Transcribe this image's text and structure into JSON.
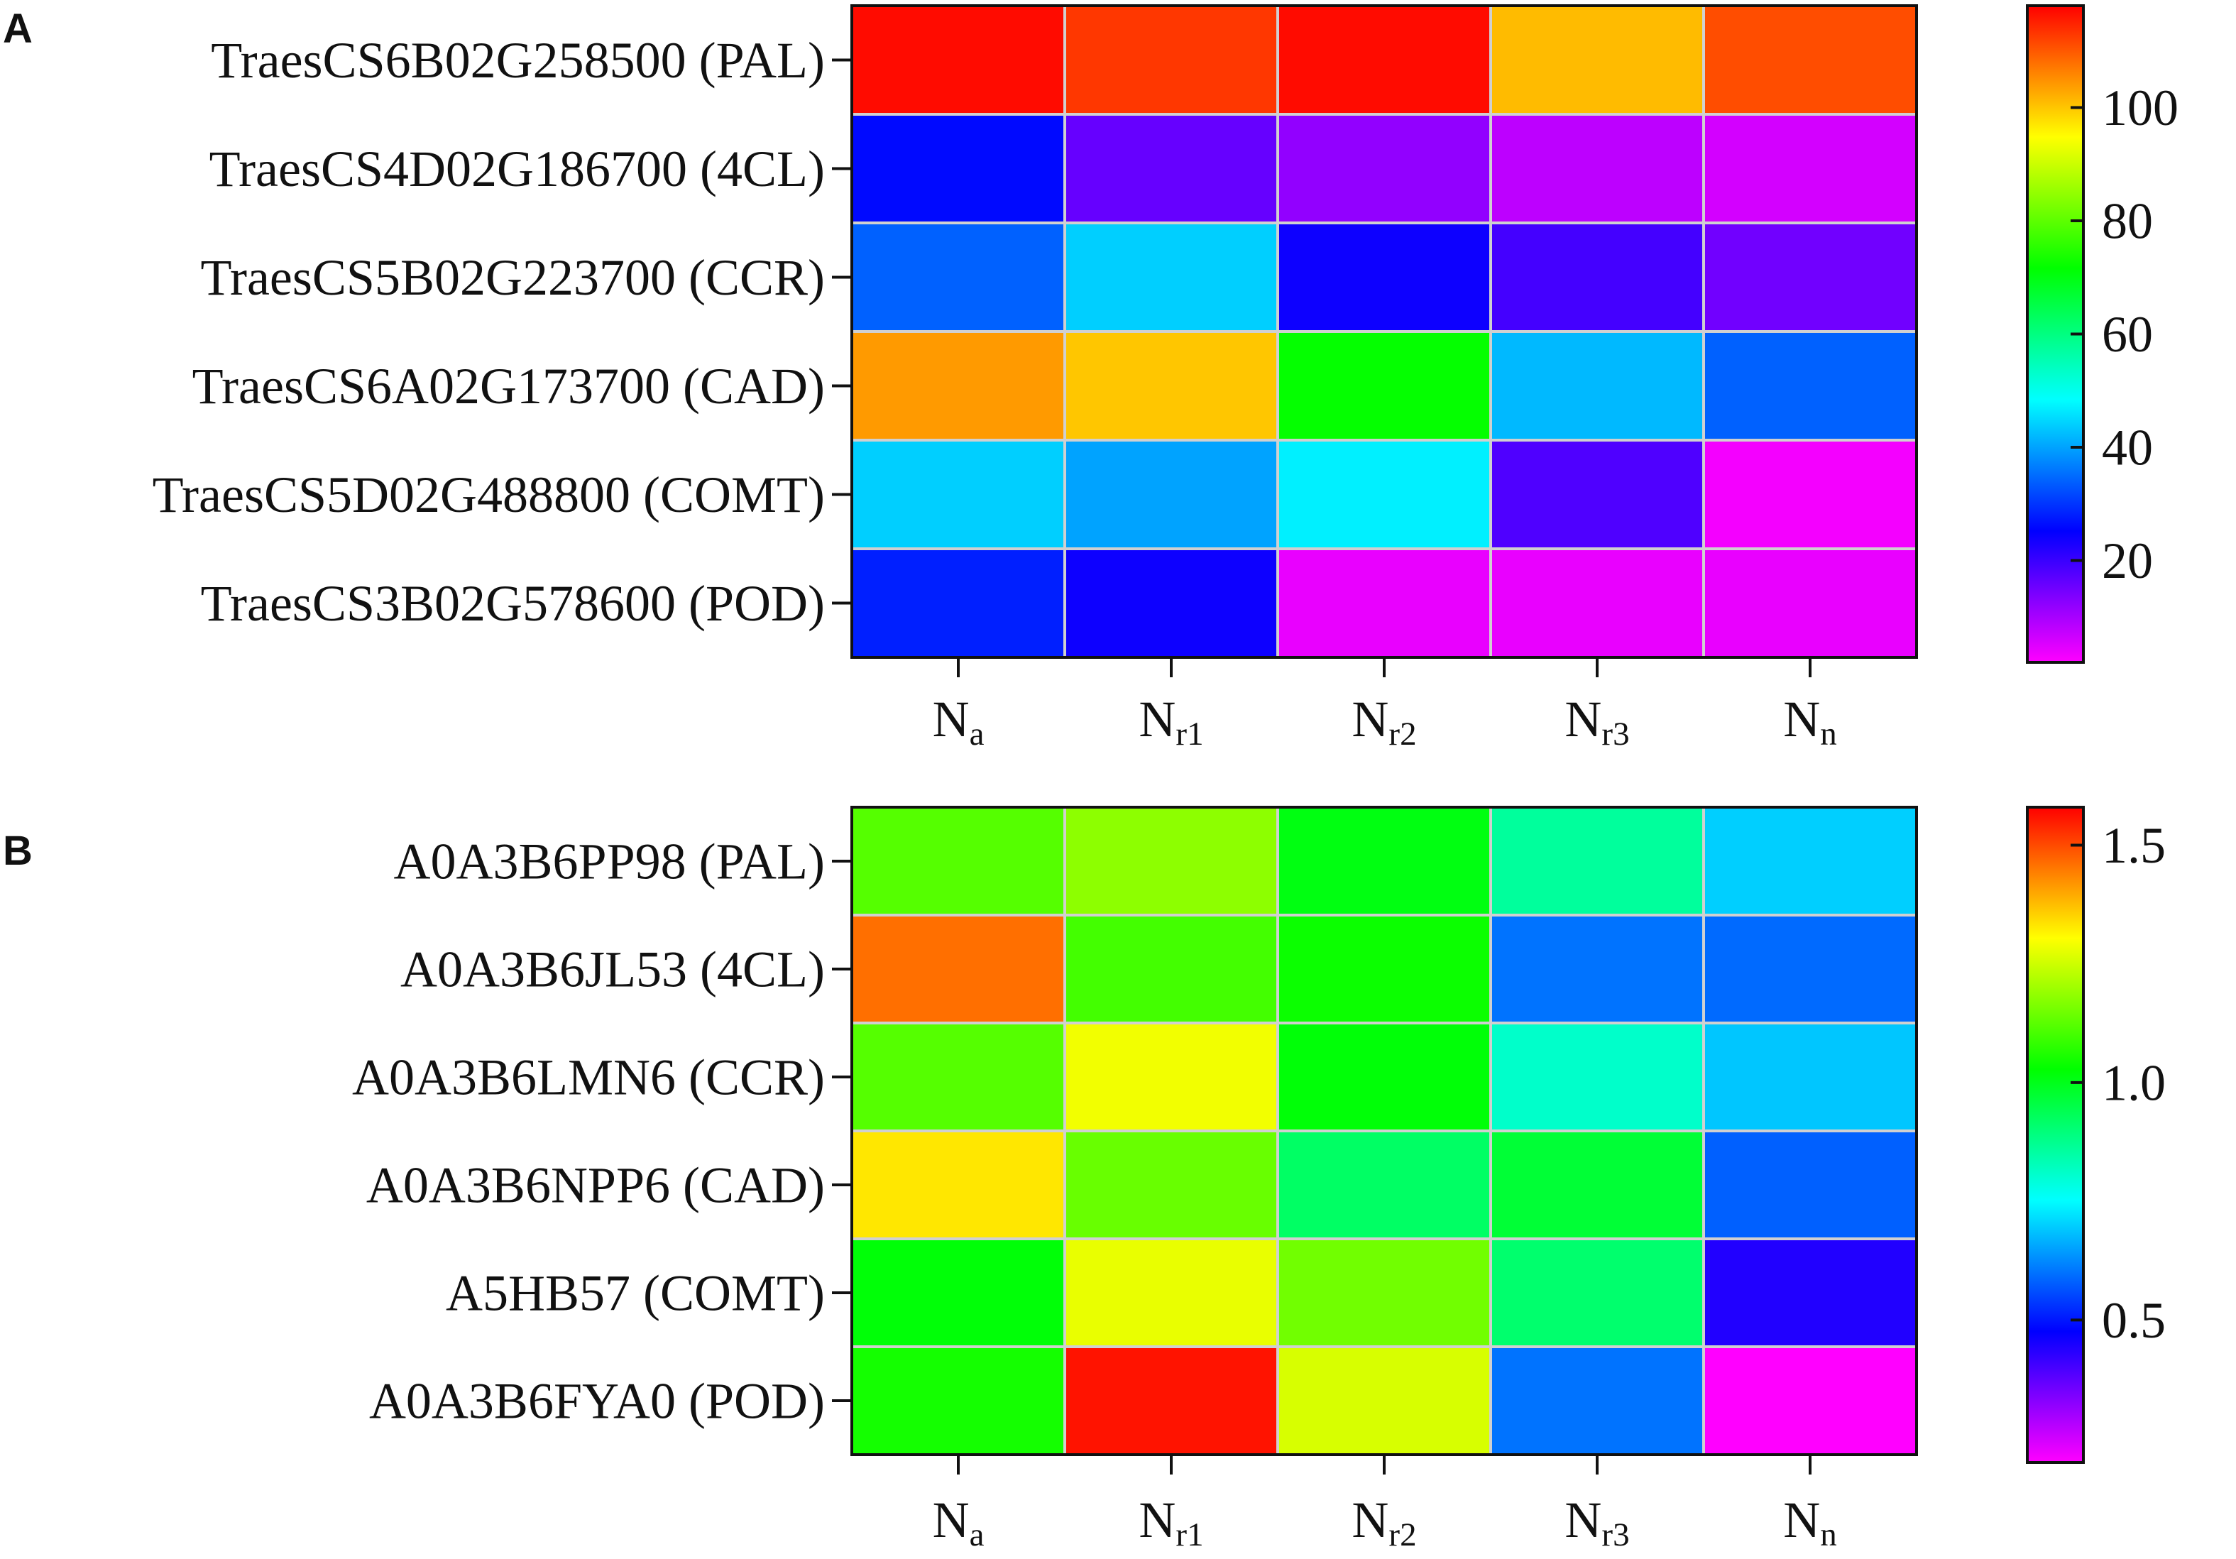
{
  "figure": {
    "panels": [
      {
        "letter": "A",
        "columns": [
          {
            "main": "N",
            "sub": "a"
          },
          {
            "main": "N",
            "sub": "r1"
          },
          {
            "main": "N",
            "sub": "r2"
          },
          {
            "main": "N",
            "sub": "r3"
          },
          {
            "main": "N",
            "sub": "n"
          }
        ],
        "rows": [
          "TraesCS6B02G258500 (PAL)",
          "TraesCS4D02G186700 (4CL)",
          "TraesCS5B02G223700 (CCR)",
          "TraesCS6A02G173700 (CAD)",
          "TraesCS5D02G488800 (COMT)",
          "TraesCS3B02G578600 (POD)"
        ],
        "colorbar": {
          "min": 2,
          "max": 118,
          "ticks": [
            20,
            40,
            60,
            80,
            100
          ],
          "tick_labels": [
            "20",
            "40",
            "60",
            "80",
            "100"
          ]
        }
      },
      {
        "letter": "B",
        "columns": [
          {
            "main": "N",
            "sub": "a"
          },
          {
            "main": "N",
            "sub": "r1"
          },
          {
            "main": "N",
            "sub": "r2"
          },
          {
            "main": "N",
            "sub": "r3"
          },
          {
            "main": "N",
            "sub": "n"
          }
        ],
        "rows": [
          "A0A3B6PP98 (PAL)",
          "A0A3B6JL53 (4CL)",
          "A0A3B6LMN6 (CCR)",
          "A0A3B6NPP6 (CAD)",
          "A5HB57 (COMT)",
          "A0A3B6FYA0 (POD)"
        ],
        "colorbar": {
          "min": 0.2,
          "max": 1.58,
          "ticks": [
            0.5,
            1.0,
            1.5
          ],
          "tick_labels": [
            "0.5",
            "1.0",
            "1.5"
          ]
        }
      }
    ]
  },
  "colors": {
    "colormap": [
      "#ff00ff",
      "#8000ff",
      "#0000ff",
      "#0080ff",
      "#00ffff",
      "#00ff80",
      "#00ff00",
      "#80ff00",
      "#ffff00",
      "#ff8000",
      "#ff0000"
    ],
    "cell_border": "#d0d0d0",
    "frame": "#111111"
  },
  "chart_data": [
    {
      "type": "heatmap",
      "panel": "A",
      "x": [
        "Na",
        "Nr1",
        "Nr2",
        "Nr3",
        "Nn"
      ],
      "y": [
        "TraesCS6B02G258500 (PAL)",
        "TraesCS4D02G186700 (4CL)",
        "TraesCS5B02G223700 (CCR)",
        "TraesCS6A02G173700 (CAD)",
        "TraesCS5D02G488800 (COMT)",
        "TraesCS3B02G578600 (POD)"
      ],
      "values": [
        [
          117,
          113,
          117,
          101,
          111
        ],
        [
          26,
          16,
          12,
          8,
          6
        ],
        [
          34,
          44,
          24,
          19,
          15
        ],
        [
          104,
          100,
          72,
          42,
          34
        ],
        [
          44,
          40,
          47,
          18,
          3
        ],
        [
          28,
          24,
          4,
          4,
          4
        ]
      ],
      "colorbar": {
        "range": [
          2,
          118
        ],
        "ticks": [
          20,
          40,
          60,
          80,
          100
        ]
      }
    },
    {
      "type": "heatmap",
      "panel": "B",
      "x": [
        "Na",
        "Nr1",
        "Nr2",
        "Nr3",
        "Nn"
      ],
      "y": [
        "A0A3B6PP98 (PAL)",
        "A0A3B6JL53 (4CL)",
        "A0A3B6LMN6 (CCR)",
        "A0A3B6NPP6 (CAD)",
        "A5HB57 (COMT)",
        "A0A3B6FYA0 (POD)"
      ],
      "values": [
        [
          1.12,
          1.18,
          1.01,
          0.86,
          0.7
        ],
        [
          1.46,
          1.1,
          1.04,
          0.6,
          0.59
        ],
        [
          1.12,
          1.29,
          1.02,
          0.81,
          0.69
        ],
        [
          1.33,
          1.14,
          0.92,
          0.97,
          0.58
        ],
        [
          1.02,
          1.28,
          1.15,
          0.91,
          0.44
        ],
        [
          1.05,
          1.56,
          1.26,
          0.6,
          0.2
        ]
      ],
      "colorbar": {
        "range": [
          0.2,
          1.58
        ],
        "ticks": [
          0.5,
          1.0,
          1.5
        ]
      }
    }
  ]
}
